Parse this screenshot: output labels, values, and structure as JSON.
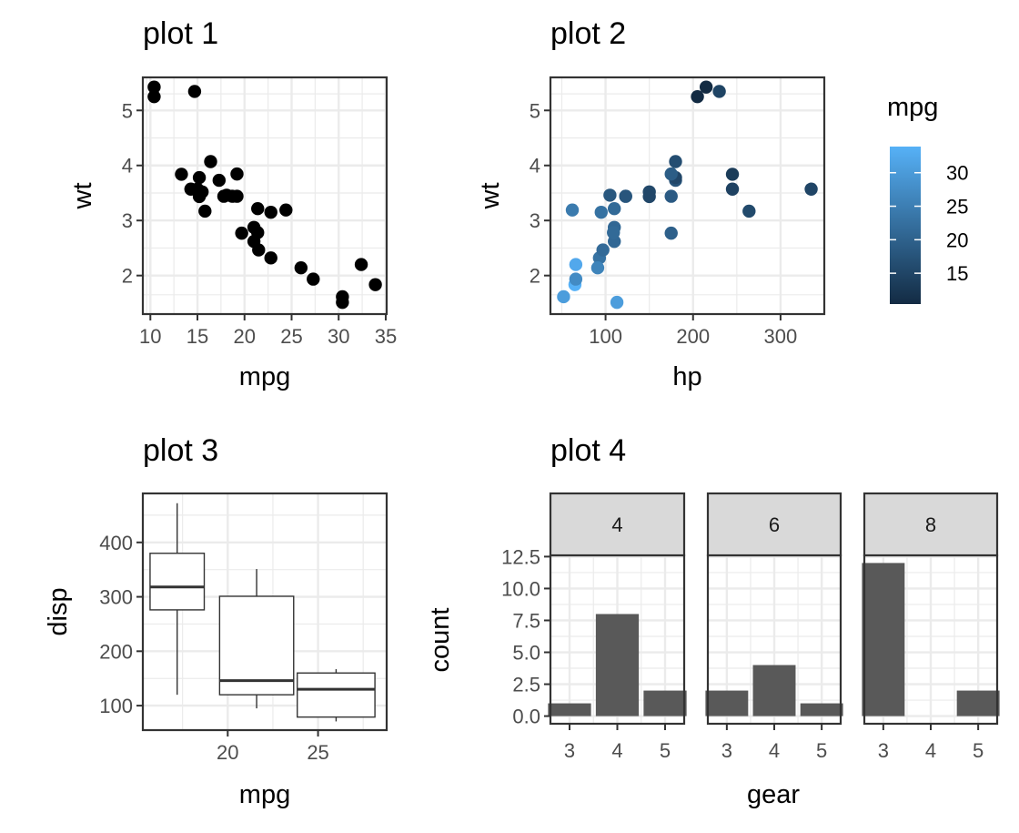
{
  "chart_data": [
    {
      "type": "scatter",
      "title": "plot 1",
      "xlabel": "mpg",
      "ylabel": "wt",
      "xlim": [
        9.2,
        35.1
      ],
      "ylim": [
        1.3,
        5.6
      ],
      "xticks": [
        10,
        15,
        20,
        25,
        30,
        35
      ],
      "yticks": [
        2,
        3,
        4,
        5
      ],
      "grid": true,
      "point_color": "#000000",
      "points": [
        {
          "x": 21.0,
          "y": 2.62
        },
        {
          "x": 21.0,
          "y": 2.875
        },
        {
          "x": 22.8,
          "y": 2.32
        },
        {
          "x": 21.4,
          "y": 3.215
        },
        {
          "x": 18.7,
          "y": 3.44
        },
        {
          "x": 18.1,
          "y": 3.46
        },
        {
          "x": 14.3,
          "y": 3.57
        },
        {
          "x": 24.4,
          "y": 3.19
        },
        {
          "x": 22.8,
          "y": 3.15
        },
        {
          "x": 19.2,
          "y": 3.44
        },
        {
          "x": 17.8,
          "y": 3.44
        },
        {
          "x": 16.4,
          "y": 4.07
        },
        {
          "x": 17.3,
          "y": 3.73
        },
        {
          "x": 15.2,
          "y": 3.78
        },
        {
          "x": 10.4,
          "y": 5.25
        },
        {
          "x": 10.4,
          "y": 5.424
        },
        {
          "x": 14.7,
          "y": 5.345
        },
        {
          "x": 32.4,
          "y": 2.2
        },
        {
          "x": 30.4,
          "y": 1.615
        },
        {
          "x": 33.9,
          "y": 1.835
        },
        {
          "x": 21.5,
          "y": 2.465
        },
        {
          "x": 15.5,
          "y": 3.52
        },
        {
          "x": 15.2,
          "y": 3.435
        },
        {
          "x": 13.3,
          "y": 3.84
        },
        {
          "x": 19.2,
          "y": 3.845
        },
        {
          "x": 27.3,
          "y": 1.935
        },
        {
          "x": 26.0,
          "y": 2.14
        },
        {
          "x": 30.4,
          "y": 1.513
        },
        {
          "x": 15.8,
          "y": 3.17
        },
        {
          "x": 19.7,
          "y": 2.77
        },
        {
          "x": 15.0,
          "y": 3.57
        },
        {
          "x": 21.4,
          "y": 2.78
        }
      ]
    },
    {
      "type": "scatter",
      "title": "plot 2",
      "xlabel": "hp",
      "ylabel": "wt",
      "xlim": [
        37,
        350
      ],
      "ylim": [
        1.3,
        5.6
      ],
      "xticks": [
        100,
        200,
        300
      ],
      "yticks": [
        2,
        3,
        4,
        5
      ],
      "grid": true,
      "color_scale": {
        "title": "mpg",
        "low": "#132B43",
        "high": "#56B1F7",
        "min": 10.4,
        "max": 33.9,
        "ticks": [
          15,
          20,
          25,
          30
        ]
      },
      "points": [
        {
          "x": 110,
          "y": 2.62,
          "c": 21.0
        },
        {
          "x": 110,
          "y": 2.875,
          "c": 21.0
        },
        {
          "x": 93,
          "y": 2.32,
          "c": 22.8
        },
        {
          "x": 110,
          "y": 3.215,
          "c": 21.4
        },
        {
          "x": 175,
          "y": 3.44,
          "c": 18.7
        },
        {
          "x": 105,
          "y": 3.46,
          "c": 18.1
        },
        {
          "x": 245,
          "y": 3.57,
          "c": 14.3
        },
        {
          "x": 62,
          "y": 3.19,
          "c": 24.4
        },
        {
          "x": 95,
          "y": 3.15,
          "c": 22.8
        },
        {
          "x": 123,
          "y": 3.44,
          "c": 19.2
        },
        {
          "x": 123,
          "y": 3.44,
          "c": 17.8
        },
        {
          "x": 180,
          "y": 4.07,
          "c": 16.4
        },
        {
          "x": 180,
          "y": 3.73,
          "c": 17.3
        },
        {
          "x": 180,
          "y": 3.78,
          "c": 15.2
        },
        {
          "x": 205,
          "y": 5.25,
          "c": 10.4
        },
        {
          "x": 215,
          "y": 5.424,
          "c": 10.4
        },
        {
          "x": 230,
          "y": 5.345,
          "c": 14.7
        },
        {
          "x": 66,
          "y": 2.2,
          "c": 32.4
        },
        {
          "x": 52,
          "y": 1.615,
          "c": 30.4
        },
        {
          "x": 65,
          "y": 1.835,
          "c": 33.9
        },
        {
          "x": 97,
          "y": 2.465,
          "c": 21.5
        },
        {
          "x": 150,
          "y": 3.52,
          "c": 15.5
        },
        {
          "x": 150,
          "y": 3.435,
          "c": 15.2
        },
        {
          "x": 245,
          "y": 3.84,
          "c": 13.3
        },
        {
          "x": 175,
          "y": 3.845,
          "c": 19.2
        },
        {
          "x": 66,
          "y": 1.935,
          "c": 27.3
        },
        {
          "x": 91,
          "y": 2.14,
          "c": 26.0
        },
        {
          "x": 113,
          "y": 1.513,
          "c": 30.4
        },
        {
          "x": 264,
          "y": 3.17,
          "c": 15.8
        },
        {
          "x": 175,
          "y": 2.77,
          "c": 19.7
        },
        {
          "x": 335,
          "y": 3.57,
          "c": 15.0
        },
        {
          "x": 109,
          "y": 2.78,
          "c": 21.4
        }
      ]
    },
    {
      "type": "box",
      "title": "plot 3",
      "xlabel": "mpg",
      "ylabel": "disp",
      "xlim": [
        15.3,
        28.8
      ],
      "ylim": [
        55,
        490
      ],
      "xticks": [
        20,
        25
      ],
      "yticks": [
        100,
        200,
        300,
        400
      ],
      "grid": true,
      "boxes": [
        {
          "center": 17.2,
          "width": 3.0,
          "min": 120,
          "q1": 276,
          "median": 318,
          "q3": 380,
          "max": 472
        },
        {
          "center": 21.6,
          "width": 4.1,
          "min": 95,
          "q1": 120,
          "median": 146,
          "q3": 301,
          "max": 351
        },
        {
          "center": 26.0,
          "width": 4.3,
          "min": 71,
          "q1": 79,
          "median": 130,
          "q3": 160,
          "max": 167
        }
      ]
    },
    {
      "type": "bar",
      "title": "plot 4",
      "xlabel": "gear",
      "ylabel": "count",
      "ylim": [
        -0.6,
        12.6
      ],
      "yticks": [
        "0.0",
        "2.5",
        "5.0",
        "7.5",
        "10.0",
        "12.5"
      ],
      "categories": [
        "3",
        "4",
        "5"
      ],
      "bar_color": "#595959",
      "facets": [
        {
          "label": "4",
          "values": [
            1,
            8,
            2
          ]
        },
        {
          "label": "6",
          "values": [
            2,
            4,
            1
          ]
        },
        {
          "label": "8",
          "values": [
            12,
            0,
            2
          ]
        }
      ]
    }
  ]
}
